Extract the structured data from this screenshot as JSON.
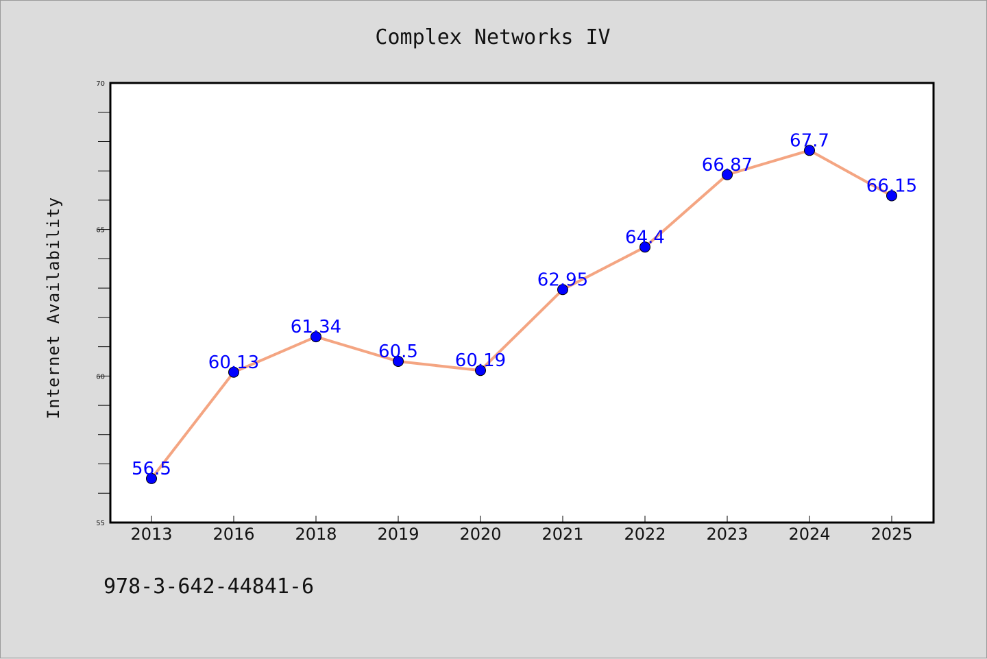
{
  "footer": "978-3-642-44841-6",
  "colors": {
    "background": "#dcdcdc",
    "plot_background": "#ffffff",
    "line": "#f4a582",
    "marker": "#0000ff",
    "data_label": "#0000ff"
  },
  "chart_data": {
    "type": "line",
    "title": "Complex Networks IV",
    "xlabel": "",
    "ylabel": "Internet Availability",
    "categories": [
      "2013",
      "2016",
      "2018",
      "2019",
      "2020",
      "2021",
      "2022",
      "2023",
      "2024",
      "2025"
    ],
    "series": [
      {
        "values": [
          56.5,
          60.13,
          61.34,
          60.5,
          60.19,
          62.95,
          64.4,
          66.87,
          67.7,
          66.15
        ],
        "labels": [
          "56.5",
          "60.13",
          "61.34",
          "60.5",
          "60.19",
          "62.95",
          "64.4",
          "66.87",
          "67.7",
          "66.15"
        ]
      }
    ],
    "ylim": [
      55,
      70
    ],
    "yticks": [
      "55",
      "60",
      "65",
      "70"
    ],
    "grid": false,
    "legend": "none"
  }
}
